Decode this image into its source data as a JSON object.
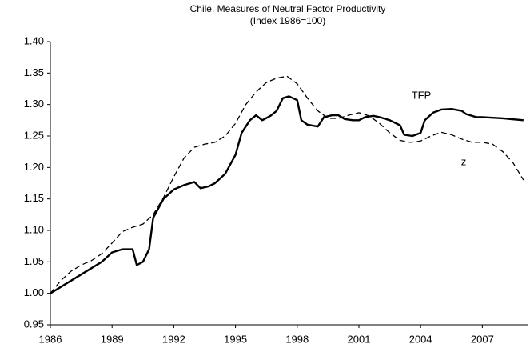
{
  "chart_data": {
    "type": "line",
    "title": "Chile. Measures of Neutral Factor Productivity",
    "subtitle": "(Index 1986=100)",
    "xlim": [
      1986,
      2009.2
    ],
    "xticks": [
      1986,
      1989,
      1992,
      1995,
      1998,
      2001,
      2004,
      2007
    ],
    "ylim": [
      0.95,
      1.4
    ],
    "yticks": [
      0.95,
      {
        "value": 1.0,
        "label": "1.00"
      },
      1.05,
      {
        "value": 1.1,
        "label": "1.10"
      },
      1.15,
      {
        "value": 1.2,
        "label": "1.20"
      },
      1.25,
      {
        "value": 1.3,
        "label": "1.30"
      },
      1.35,
      {
        "value": 1.4,
        "label": "1.40"
      }
    ],
    "grid": false,
    "series": [
      {
        "name": "TFP",
        "color": "#000000",
        "dash": false,
        "x": [
          1986,
          1987,
          1988,
          1988.5,
          1989,
          1989.5,
          1990,
          1990.2,
          1990.5,
          1990.8,
          1991,
          1991.5,
          1992,
          1992.5,
          1993,
          1993.3,
          1993.7,
          1994,
          1994.5,
          1995,
          1995.3,
          1995.7,
          1996,
          1996.3,
          1996.7,
          1997,
          1997.3,
          1997.6,
          1998,
          1998.2,
          1998.5,
          1999,
          1999.3,
          1999.7,
          2000,
          2000.3,
          2000.7,
          2001,
          2001.3,
          2001.7,
          2002,
          2002.5,
          2003,
          2003.2,
          2003.6,
          2004,
          2004.2,
          2004.6,
          2005,
          2005.5,
          2006,
          2006.2,
          2006.7,
          2007,
          2008,
          2009
        ],
        "values": [
          1.0,
          1.02,
          1.04,
          1.05,
          1.065,
          1.07,
          1.07,
          1.045,
          1.05,
          1.07,
          1.12,
          1.15,
          1.165,
          1.172,
          1.177,
          1.167,
          1.17,
          1.175,
          1.19,
          1.22,
          1.255,
          1.275,
          1.283,
          1.275,
          1.282,
          1.29,
          1.31,
          1.313,
          1.307,
          1.275,
          1.268,
          1.265,
          1.28,
          1.283,
          1.283,
          1.277,
          1.275,
          1.275,
          1.28,
          1.282,
          1.28,
          1.275,
          1.267,
          1.252,
          1.25,
          1.255,
          1.275,
          1.287,
          1.292,
          1.293,
          1.29,
          1.285,
          1.28,
          1.28,
          1.278,
          1.275
        ]
      },
      {
        "name": "z",
        "color": "#000000",
        "dash": true,
        "x": [
          1986,
          1986.5,
          1987,
          1987.5,
          1988,
          1988.5,
          1989,
          1989.5,
          1990,
          1990.5,
          1991,
          1991.5,
          1992,
          1992.5,
          1993,
          1993.5,
          1994,
          1994.5,
          1995,
          1995.5,
          1996,
          1996.5,
          1997,
          1997.5,
          1998,
          1998.5,
          1999,
          1999.5,
          2000,
          2000.5,
          2001,
          2001.5,
          2002,
          2002.5,
          2003,
          2003.5,
          2004,
          2004.5,
          2005,
          2005.5,
          2006,
          2006.5,
          2007,
          2007.5,
          2008,
          2008.5,
          2009
        ],
        "values": [
          1.0,
          1.02,
          1.035,
          1.045,
          1.052,
          1.063,
          1.08,
          1.098,
          1.105,
          1.11,
          1.125,
          1.152,
          1.185,
          1.215,
          1.232,
          1.237,
          1.24,
          1.25,
          1.27,
          1.3,
          1.32,
          1.335,
          1.342,
          1.345,
          1.333,
          1.31,
          1.29,
          1.278,
          1.278,
          1.283,
          1.287,
          1.282,
          1.27,
          1.255,
          1.243,
          1.24,
          1.242,
          1.25,
          1.256,
          1.252,
          1.245,
          1.24,
          1.24,
          1.237,
          1.225,
          1.207,
          1.18
        ]
      }
    ]
  }
}
